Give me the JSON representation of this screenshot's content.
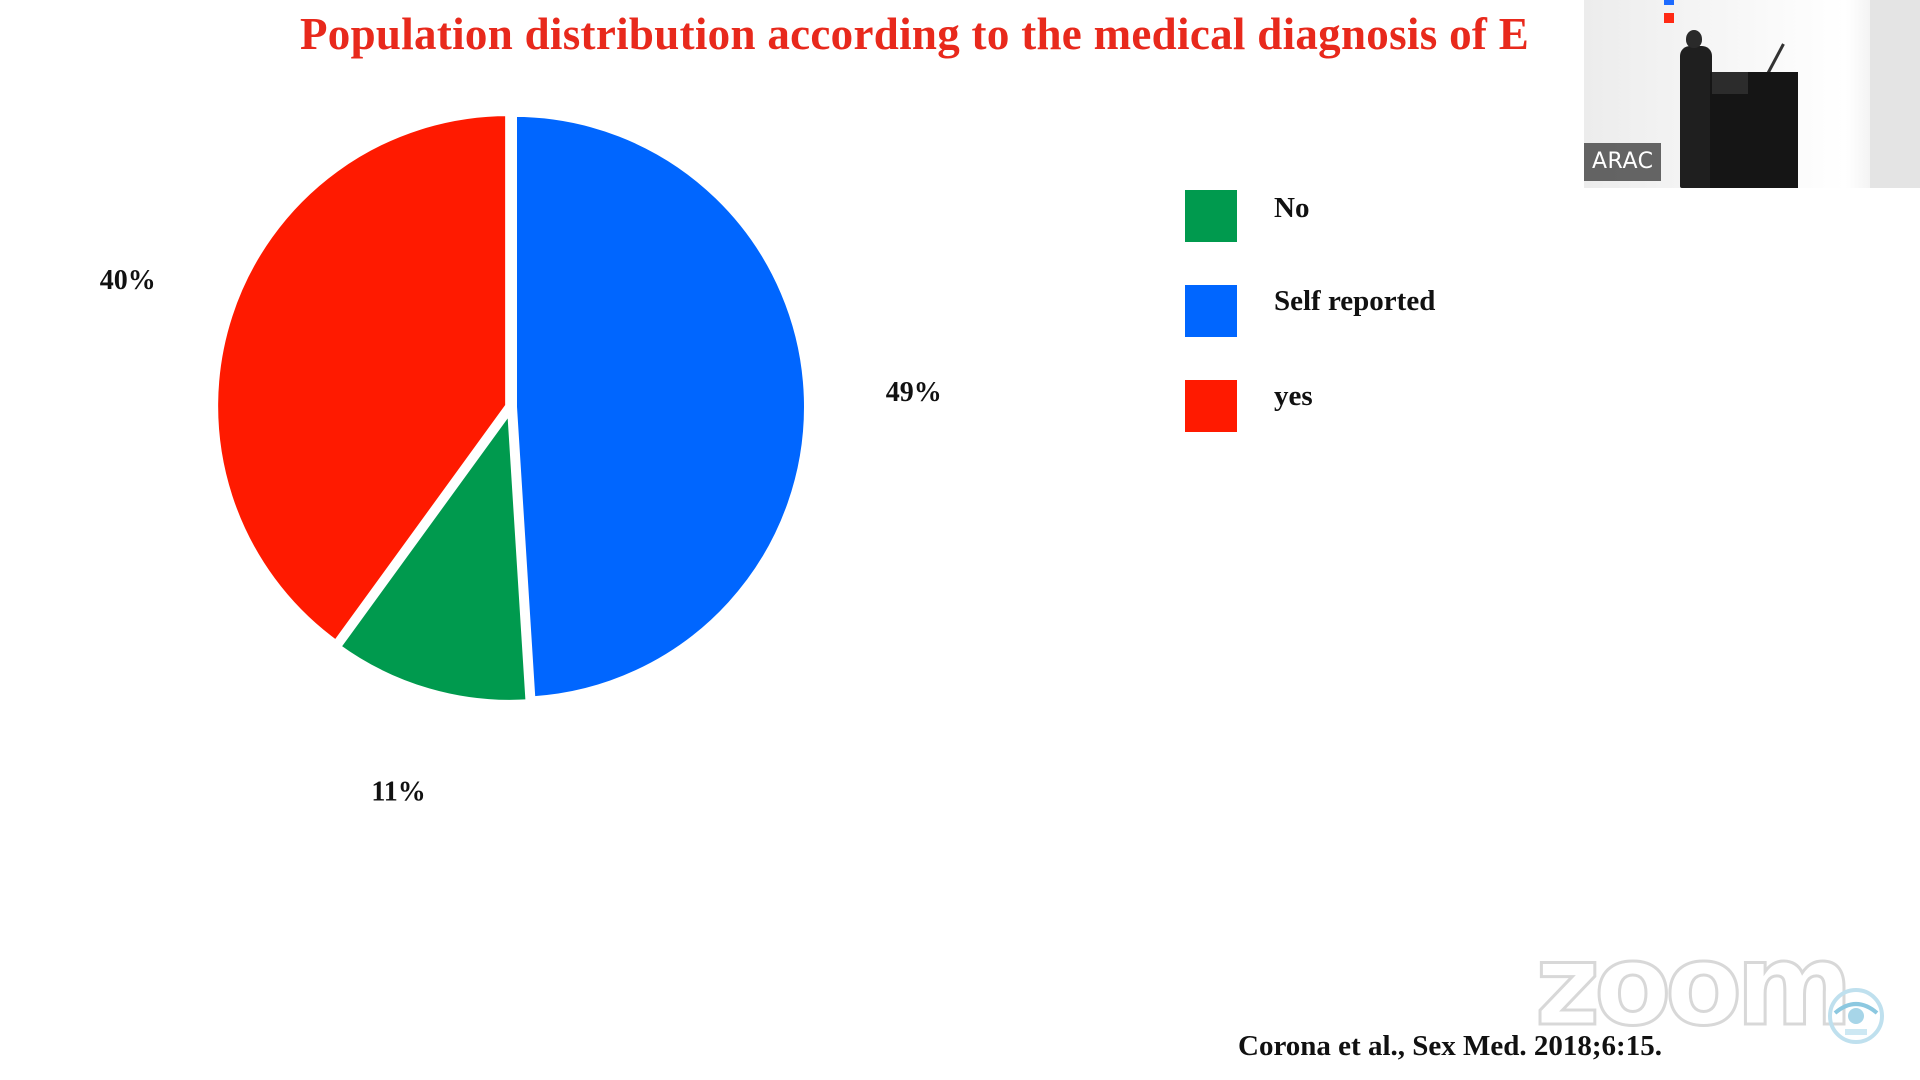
{
  "slide": {
    "title": "Population distribution according to the medical diagnosis of E",
    "citation": "Corona et al., Sex Med. 2018;6:15."
  },
  "chart_data": {
    "type": "pie",
    "title": "Population distribution according to the medical diagnosis of E",
    "slices": [
      {
        "label": "Self reported",
        "value": 49,
        "display": "49%",
        "color": "#0066ff"
      },
      {
        "label": "No",
        "value": 11,
        "display": "11%",
        "color": "#009a4e"
      },
      {
        "label": "yes",
        "value": 40,
        "display": "40%",
        "color": "#ff1a00"
      }
    ],
    "legend_order": [
      "No",
      "Self reported",
      "yes"
    ],
    "legend": [
      {
        "label": "No",
        "color": "#009a4e"
      },
      {
        "label": "Self reported",
        "color": "#0066ff"
      },
      {
        "label": "yes",
        "color": "#ff1a00"
      }
    ],
    "legend_position": "right"
  },
  "video": {
    "participant_name": "ARAC"
  },
  "watermark": {
    "text": "zoom"
  }
}
